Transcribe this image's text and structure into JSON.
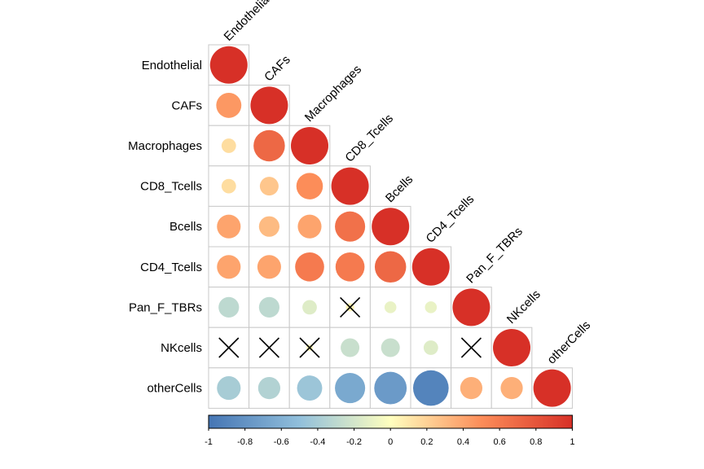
{
  "chart_data": {
    "type": "heatmap",
    "title": "",
    "labels": [
      "Endothelial",
      "CAFs",
      "Macrophages",
      "CD8_Tcells",
      "Bcells",
      "CD4_Tcells",
      "Pan_F_TBRs",
      "NKcells",
      "otherCells"
    ],
    "matrix": [
      [
        1.0,
        null,
        null,
        null,
        null,
        null,
        null,
        null,
        null
      ],
      [
        0.45,
        1.0,
        null,
        null,
        null,
        null,
        null,
        null,
        null
      ],
      [
        0.15,
        0.7,
        1.0,
        null,
        null,
        null,
        null,
        null,
        null
      ],
      [
        0.15,
        0.25,
        0.5,
        1.0,
        null,
        null,
        null,
        null,
        null
      ],
      [
        0.4,
        0.3,
        0.4,
        0.65,
        1.0,
        null,
        null,
        null,
        null
      ],
      [
        0.4,
        0.4,
        0.6,
        0.6,
        0.7,
        1.0,
        null,
        null,
        null
      ],
      [
        -0.3,
        -0.3,
        -0.15,
        0.05,
        -0.1,
        -0.1,
        1.0,
        null,
        null
      ],
      [
        0.0,
        0.0,
        0.03,
        -0.25,
        -0.25,
        -0.15,
        0.0,
        1.0,
        null
      ],
      [
        -0.4,
        -0.35,
        -0.45,
        -0.65,
        -0.75,
        -0.9,
        0.35,
        0.35,
        1.0
      ]
    ],
    "insignificant": [
      [
        6,
        3
      ],
      [
        7,
        0
      ],
      [
        7,
        1
      ],
      [
        7,
        2
      ],
      [
        7,
        6
      ]
    ],
    "colorbar": {
      "range": [
        -1,
        1
      ],
      "ticks": [
        "-1",
        "-0.8",
        "-0.6",
        "-0.4",
        "-0.2",
        "0",
        "0.2",
        "0.4",
        "0.6",
        "0.8",
        "1"
      ],
      "colors": [
        "#4575b4",
        "#91bfdb",
        "#ffffbf",
        "#fc8d59",
        "#d73027"
      ]
    },
    "grid": true,
    "shape": "circle",
    "layout": "lower-triangle"
  }
}
